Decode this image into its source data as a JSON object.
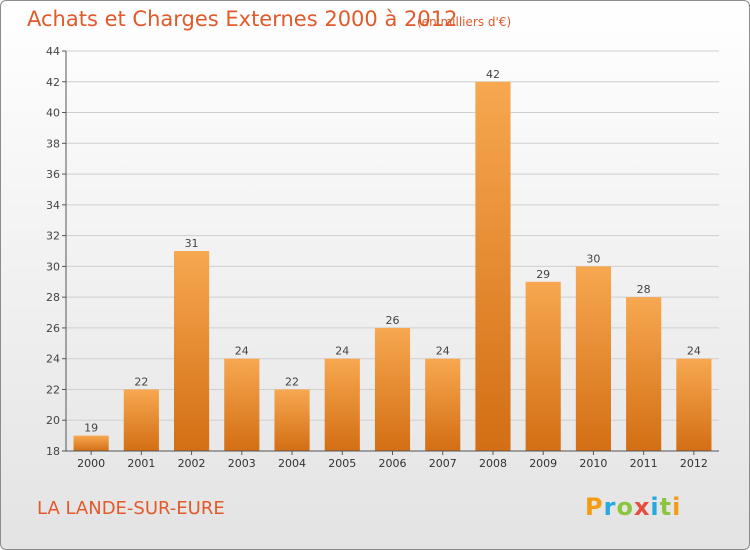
{
  "header": {
    "title": "Achats et Charges Externes 2000 à 2012",
    "subtitle": "(en milliers d'€)"
  },
  "footer": {
    "commune": "LA LANDE-SUR-EURE",
    "logo_letters": [
      "P",
      "r",
      "o",
      "x",
      "i",
      "t",
      "i"
    ],
    "logo_colors": [
      "#f39c12",
      "#27a8e0",
      "#8cc63f",
      "#e74c3c",
      "#27a8e0",
      "#8cc63f",
      "#f39c12"
    ]
  },
  "colors": {
    "accent": "#e2592a",
    "bar_top": "#f7a850",
    "bar_bottom": "#d36e14"
  },
  "chart_data": {
    "type": "bar",
    "title": "Achats et Charges Externes 2000 à 2012",
    "subtitle": "(en milliers d'€)",
    "categories": [
      "2000",
      "2001",
      "2002",
      "2003",
      "2004",
      "2005",
      "2006",
      "2007",
      "2008",
      "2009",
      "2010",
      "2011",
      "2012"
    ],
    "values": [
      19,
      22,
      31,
      24,
      22,
      24,
      26,
      24,
      42,
      29,
      30,
      28,
      24
    ],
    "ylim": [
      18,
      44
    ],
    "yticks": [
      18,
      20,
      22,
      24,
      26,
      28,
      30,
      32,
      34,
      36,
      38,
      40,
      42,
      44
    ],
    "grid": true,
    "xlabel": "",
    "ylabel": ""
  }
}
